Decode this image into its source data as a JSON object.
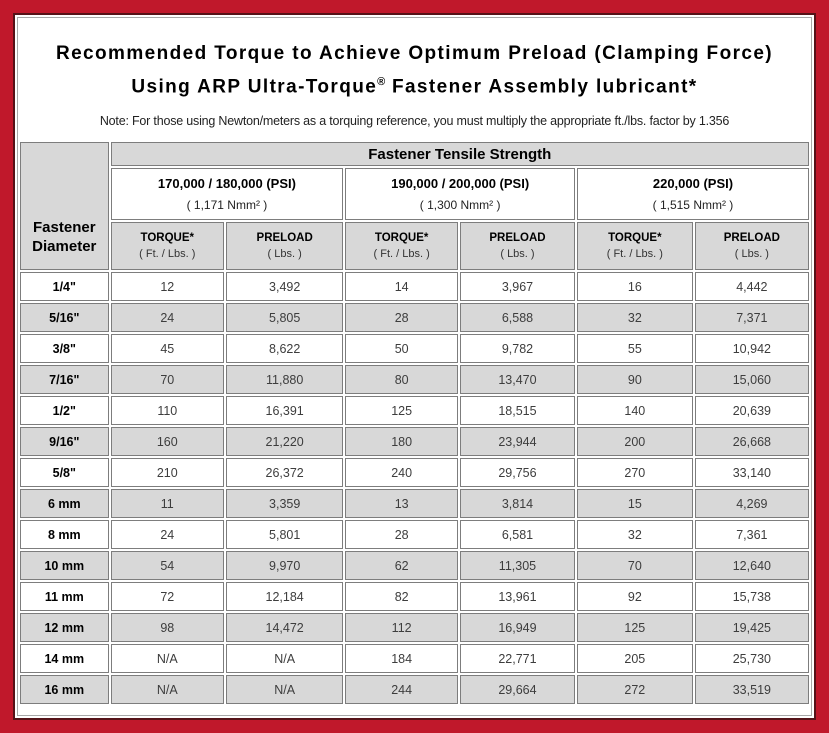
{
  "title": {
    "line1": "Recommended Torque to Achieve Optimum Preload (Clamping Force)",
    "line2_pre": "Using ARP Ultra-Torque",
    "line2_sup": "®",
    "line2_post": " Fastener Assembly lubricant*",
    "note": "Note: For those using Newton/meters as a torquing reference, you must multiply the appropriate ft./lbs. factor by 1.356"
  },
  "table": {
    "corner_header": "Fastener Diameter",
    "main_header": "Fastener Tensile Strength",
    "groups": [
      {
        "psi": "170,000 / 180,000 (PSI)",
        "nmm": "( 1,171 Nmm² )"
      },
      {
        "psi": "190,000 / 200,000 (PSI)",
        "nmm": "( 1,300 Nmm² )"
      },
      {
        "psi": "220,000 (PSI)",
        "nmm": "( 1,515 Nmm² )"
      }
    ],
    "sub_headers": {
      "torque_label": "TORQUE*",
      "torque_unit": "( Ft. / Lbs. )",
      "preload_label": "PRELOAD",
      "preload_unit": "( Lbs. )"
    },
    "rows": [
      {
        "diameter": "1/4\"",
        "values": [
          "12",
          "3,492",
          "14",
          "3,967",
          "16",
          "4,442"
        ]
      },
      {
        "diameter": "5/16\"",
        "values": [
          "24",
          "5,805",
          "28",
          "6,588",
          "32",
          "7,371"
        ]
      },
      {
        "diameter": "3/8\"",
        "values": [
          "45",
          "8,622",
          "50",
          "9,782",
          "55",
          "10,942"
        ]
      },
      {
        "diameter": "7/16\"",
        "values": [
          "70",
          "11,880",
          "80",
          "13,470",
          "90",
          "15,060"
        ]
      },
      {
        "diameter": "1/2\"",
        "values": [
          "110",
          "16,391",
          "125",
          "18,515",
          "140",
          "20,639"
        ]
      },
      {
        "diameter": "9/16\"",
        "values": [
          "160",
          "21,220",
          "180",
          "23,944",
          "200",
          "26,668"
        ]
      },
      {
        "diameter": "5/8\"",
        "values": [
          "210",
          "26,372",
          "240",
          "29,756",
          "270",
          "33,140"
        ]
      },
      {
        "diameter": "6 mm",
        "values": [
          "11",
          "3,359",
          "13",
          "3,814",
          "15",
          "4,269"
        ]
      },
      {
        "diameter": "8 mm",
        "values": [
          "24",
          "5,801",
          "28",
          "6,581",
          "32",
          "7,361"
        ]
      },
      {
        "diameter": "10 mm",
        "values": [
          "54",
          "9,970",
          "62",
          "11,305",
          "70",
          "12,640"
        ]
      },
      {
        "diameter": "11 mm",
        "values": [
          "72",
          "12,184",
          "82",
          "13,961",
          "92",
          "15,738"
        ]
      },
      {
        "diameter": "12 mm",
        "values": [
          "98",
          "14,472",
          "112",
          "16,949",
          "125",
          "19,425"
        ]
      },
      {
        "diameter": "14 mm",
        "values": [
          "N/A",
          "N/A",
          "184",
          "22,771",
          "205",
          "25,730"
        ]
      },
      {
        "diameter": "16 mm",
        "values": [
          "N/A",
          "N/A",
          "244",
          "29,664",
          "272",
          "33,519"
        ]
      }
    ]
  },
  "colors": {
    "border_red": "#c0182b",
    "inner_dark_line": "#551218",
    "header_gray": "#d8d8d8",
    "cell_border": "#7d7d7d",
    "number_text": "#3d3d3d"
  }
}
